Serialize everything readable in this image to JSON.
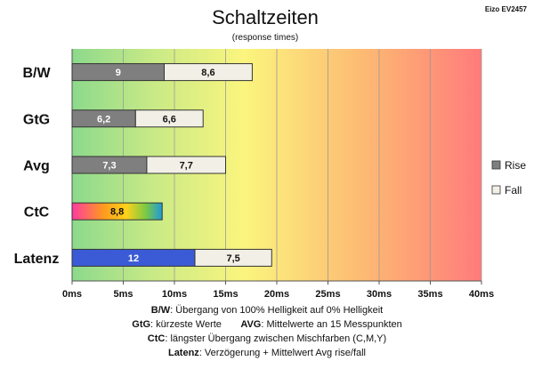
{
  "chart_data": {
    "type": "bar",
    "orientation": "horizontal",
    "stacked": true,
    "title": "Schaltzeiten",
    "subtitle": "(response times)",
    "corner_label": "Eizo EV2457",
    "categories": [
      "B/W",
      "GtG",
      "Avg",
      "CtC",
      "Latenz"
    ],
    "series": [
      {
        "name": "Rise",
        "values": [
          9,
          6.2,
          7.3,
          8.8,
          12
        ],
        "labels": [
          "9",
          "6,2",
          "7,3",
          "8,8",
          "12"
        ]
      },
      {
        "name": "Fall",
        "values": [
          8.6,
          6.6,
          7.7,
          null,
          7.5
        ],
        "labels": [
          "8,6",
          "6,6",
          "7,7",
          "",
          "7,5"
        ]
      }
    ],
    "xlim": [
      0,
      40
    ],
    "x_ticks": [
      "0ms",
      "5ms",
      "10ms",
      "15ms",
      "20ms",
      "25ms",
      "30ms",
      "35ms",
      "40ms"
    ],
    "grid": true,
    "legend_position": "right",
    "colors": {
      "rise": "#7f7f7f",
      "fall": "#f2f0e6",
      "latenz_rise": "#3b5bd6",
      "bar_border": "#333333",
      "background_gradient": [
        "#8fdc8f",
        "#fbf57e",
        "#ff7f7f"
      ]
    }
  },
  "footnotes": [
    {
      "key": "B/W",
      "text": ":  Übergang von 100% Helligkeit auf 0% Helligkeit"
    },
    {
      "key": "GtG",
      "text": ": kürzeste  Werte",
      "key2": "AVG",
      "text2": ": Mittelwerte  an 15 Messpunkten"
    },
    {
      "key": "CtC",
      "text": ": längster Übergang  zwischen Mischfarben  (C,M,Y)"
    },
    {
      "key": "Latenz",
      "text": ": Verzögerung  + Mittelwert  Avg rise/fall"
    }
  ]
}
